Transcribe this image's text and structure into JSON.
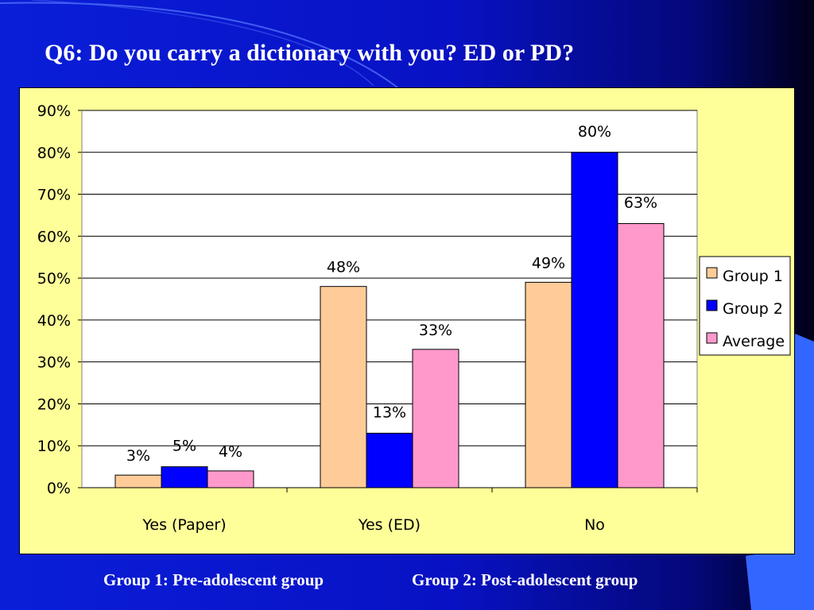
{
  "slide": {
    "title": "Q6: Do you carry a dictionary with you? ED or PD?",
    "footnote_group1": "Group 1: Pre-adolescent group",
    "footnote_group2": "Group 2: Post-adolescent group"
  },
  "colors": {
    "background": "#0a1ed8",
    "plot_background": "#ffff99",
    "group1": "#ffcc99",
    "group2": "#0000ff",
    "average": "#ff99cc"
  },
  "chart_data": {
    "type": "bar",
    "categories": [
      "Yes (Paper)",
      "Yes (ED)",
      "No"
    ],
    "series": [
      {
        "name": "Group 1",
        "values": [
          3,
          48,
          49
        ],
        "labels": [
          "3%",
          "48%",
          "49%"
        ],
        "color": "#ffcc99"
      },
      {
        "name": "Group 2",
        "values": [
          5,
          13,
          80
        ],
        "labels": [
          "5%",
          "13%",
          "80%"
        ],
        "color": "#0000ff"
      },
      {
        "name": "Average",
        "values": [
          4,
          33,
          63
        ],
        "labels": [
          "4%",
          "33%",
          "63%"
        ],
        "color": "#ff99cc"
      }
    ],
    "y_ticks": [
      "0%",
      "10%",
      "20%",
      "30%",
      "40%",
      "50%",
      "60%",
      "70%",
      "80%",
      "90%"
    ],
    "ylim": [
      0,
      90
    ],
    "grid": true,
    "legend_position": "right"
  }
}
